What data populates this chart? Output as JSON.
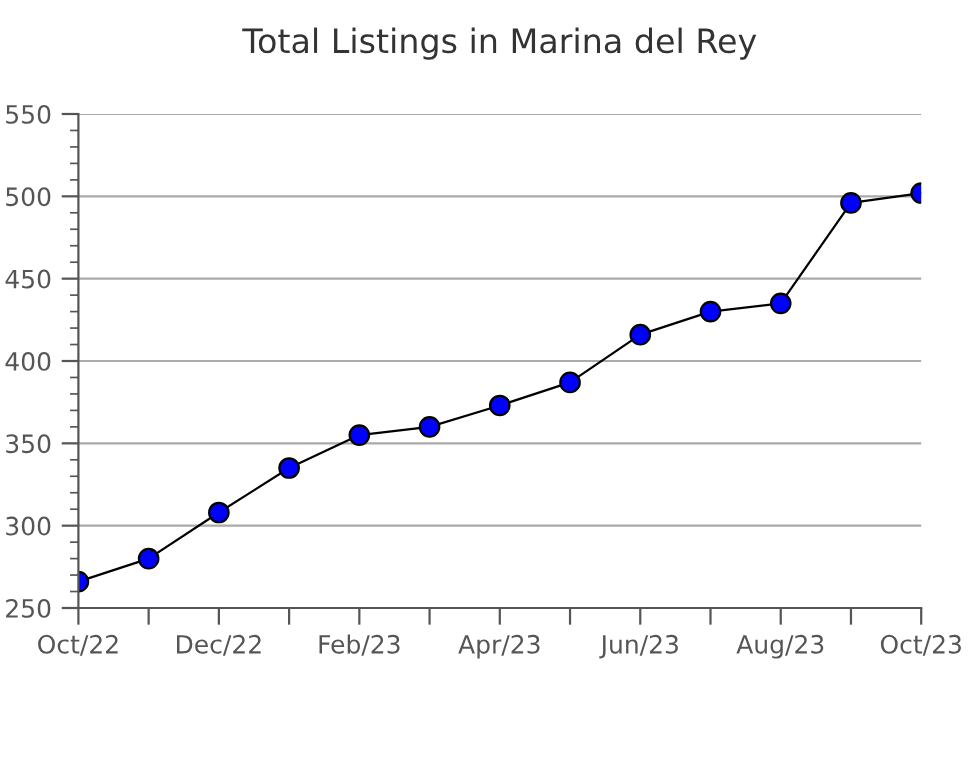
{
  "chart_data": {
    "type": "line",
    "title": "Total Listings in Marina del Rey",
    "categories": [
      "Oct/22",
      null,
      "Dec/22",
      null,
      "Feb/23",
      null,
      "Apr/23",
      null,
      "Jun/23",
      null,
      "Aug/23",
      null,
      "Oct/23"
    ],
    "series": [
      {
        "color": "#0000ff",
        "values": [
          266,
          280,
          308,
          335,
          355,
          360,
          373,
          387,
          416,
          430,
          435,
          496,
          502
        ]
      }
    ],
    "ylim": [
      250,
      550
    ],
    "yticks": [
      250,
      300,
      350,
      400,
      450,
      500,
      550
    ],
    "grid": "y",
    "marker": "circle",
    "line_style": "solid"
  }
}
